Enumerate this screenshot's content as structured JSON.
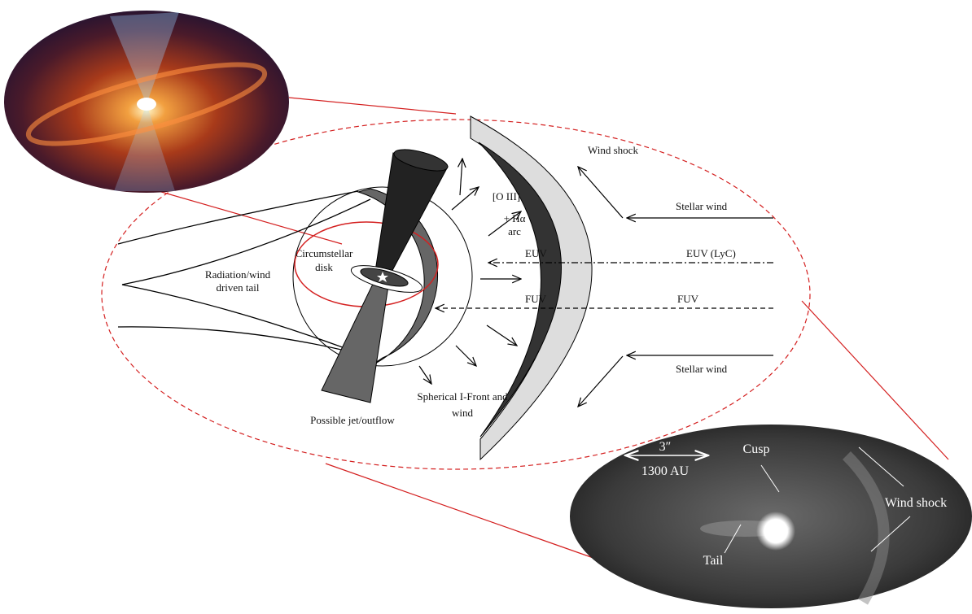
{
  "diagram": {
    "wind_shock": "Wind shock",
    "stellar_wind_top": "Stellar wind",
    "stellar_wind_bottom": "Stellar wind",
    "oiii_arc": [
      "[O III]",
      "+ Hα",
      "arc"
    ],
    "euv": "EUV",
    "euv_lyc": "EUV (LyC)",
    "fuv_left": "FUV",
    "fuv_right": "FUV",
    "circumstellar_disk": [
      "Circumstellar",
      "disk"
    ],
    "tail": [
      "Radiation/wind",
      "driven tail"
    ],
    "i_front": [
      "Spherical I-Front and",
      "wind"
    ],
    "jet": "Possible jet/outflow",
    "inset": {
      "scale_arcsec": "3″",
      "scale_au": "1300 AU",
      "cusp": "Cusp",
      "wind_shock": "Wind shock",
      "tail": "Tail"
    }
  }
}
